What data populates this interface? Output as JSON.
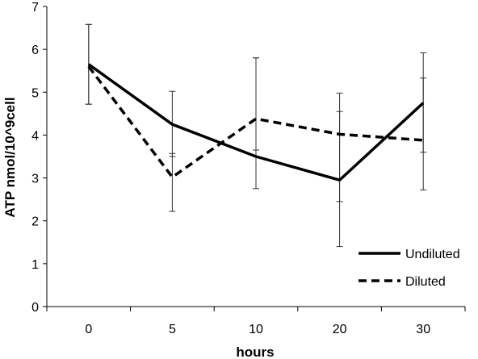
{
  "chart_data": {
    "type": "line",
    "title": "",
    "xlabel": "hours",
    "ylabel": "ATP nmol/10^9cell",
    "categories": [
      "0",
      "5",
      "10",
      "20",
      "30"
    ],
    "ylim": [
      0,
      7
    ],
    "yticks": [
      0,
      1,
      2,
      3,
      4,
      5,
      6,
      7
    ],
    "grid": false,
    "legend_position": "bottom-right",
    "series": [
      {
        "name": "Undiluted",
        "style": "solid",
        "color": "#000000",
        "values": [
          5.65,
          4.25,
          3.5,
          2.95,
          4.75
        ],
        "error_low": [
          4.72,
          3.5,
          2.75,
          1.4,
          3.6
        ],
        "error_high": [
          6.58,
          5.02,
          5.8,
          4.98,
          5.92
        ]
      },
      {
        "name": "Diluted",
        "style": "dashed",
        "color": "#000000",
        "values": [
          5.6,
          3.02,
          4.38,
          4.02,
          3.88
        ],
        "error_low": [
          4.72,
          2.22,
          3.65,
          2.45,
          2.72
        ],
        "error_high": [
          6.58,
          3.57,
          5.8,
          4.55,
          5.33
        ]
      }
    ]
  }
}
